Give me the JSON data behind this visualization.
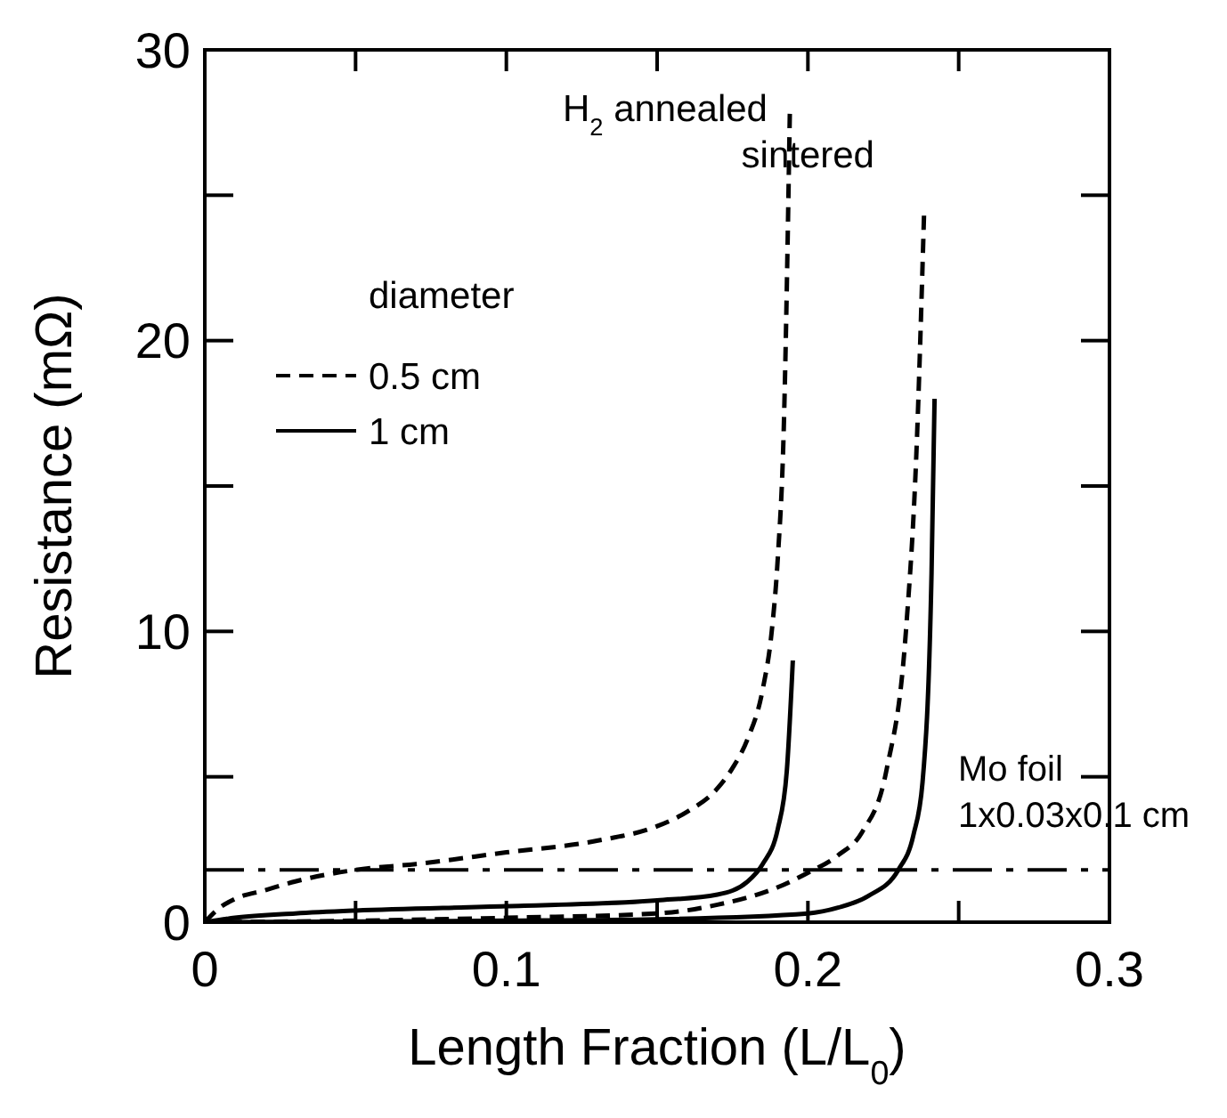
{
  "chart_data": {
    "type": "line",
    "xlabel": "Length Fraction (L/L$_{0}$)",
    "ylabel": "Resistance (mΩ)",
    "legend_title": "diameter",
    "legend": "top left",
    "xlim": [
      0,
      0.3
    ],
    "ylim": [
      0,
      30
    ],
    "xticks": [
      0,
      {
        "value": 0.05,
        "label": null
      },
      0.1,
      {
        "value": 0.15,
        "label": null
      },
      0.2,
      {
        "value": 0.25,
        "label": null
      },
      0.3
    ],
    "yticks": [
      0,
      {
        "value": 5,
        "label": null
      },
      10,
      {
        "value": 15,
        "label": null
      },
      20,
      {
        "value": 25,
        "label": null
      },
      30
    ],
    "series": [
      {
        "name": "0.5 cm",
        "color": "#000000",
        "line_style": "dashed",
        "x": [
          0,
          0.005,
          0.01,
          0.02,
          0.03,
          0.05,
          0.07,
          0.1,
          0.13,
          0.15,
          0.16,
          0.17,
          0.175,
          0.18,
          0.185,
          0.188,
          0.19,
          0.192,
          0.194
        ],
        "values": [
          0,
          0.5,
          0.8,
          1.1,
          1.4,
          1.8,
          2.0,
          2.4,
          2.8,
          3.3,
          3.8,
          4.6,
          5.3,
          6.3,
          8.0,
          10,
          12.5,
          17,
          27.8
        ]
      },
      {
        "name": "1 cm",
        "color": "#000000",
        "line_style": "solid",
        "x": [
          0,
          0.01,
          0.03,
          0.05,
          0.1,
          0.15,
          0.17,
          0.18,
          0.185,
          0.19,
          0.193,
          0.195
        ],
        "values": [
          0,
          0.15,
          0.3,
          0.4,
          0.55,
          0.75,
          0.95,
          1.4,
          2.0,
          3.2,
          5.2,
          9.0
        ]
      },
      {
        "color": "#000000",
        "line_style": "dashed",
        "x": [
          0,
          0.05,
          0.1,
          0.15,
          0.17,
          0.19,
          0.2,
          0.21,
          0.218,
          0.226,
          0.2325,
          0.236,
          0.2385
        ],
        "values": [
          0,
          0.05,
          0.15,
          0.3,
          0.6,
          1.2,
          1.7,
          2.3,
          3.1,
          5.2,
          10,
          16.2,
          24.3
        ]
      },
      {
        "color": "#000000",
        "line_style": "solid",
        "x": [
          0,
          0.05,
          0.1,
          0.15,
          0.2,
          0.21,
          0.22,
          0.23,
          0.235,
          0.238,
          0.241,
          0.242
        ],
        "values": [
          0,
          0.02,
          0.05,
          0.1,
          0.3,
          0.5,
          0.9,
          1.8,
          3.0,
          4.8,
          12,
          18
        ]
      }
    ],
    "ref_lines": [
      {
        "axis": "y",
        "value": 1.8,
        "label": "Mo foil 1x0.03x0.1 cm",
        "color": "#000000",
        "line_style": "dashdot"
      }
    ],
    "annotations": [
      "H$_{2}$ annealed",
      "sintered"
    ]
  }
}
